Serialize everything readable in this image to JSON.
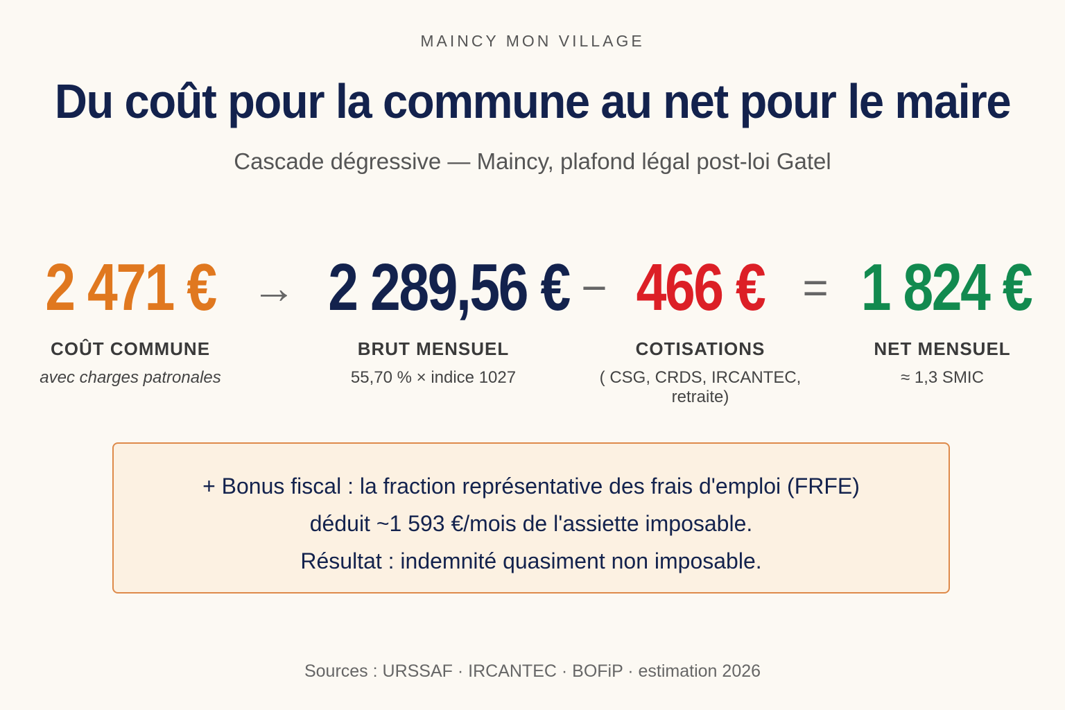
{
  "header": {
    "eyebrow": "MAINCY MON VILLAGE",
    "title": "Du coût pour la commune au net pour le maire",
    "subtitle": "Cascade dégressive — Maincy, plafond légal post-loi Gatel"
  },
  "cascade": {
    "cost": {
      "amount": "2 471 €",
      "label": "COÛT COMMUNE",
      "caption": "avec charges patronales",
      "color": "#e0781f"
    },
    "op1": "→",
    "gross": {
      "amount": "2 289,56 €",
      "label": "BRUT MENSUEL",
      "caption": "55,70 % × indice 1027",
      "color": "#13224d"
    },
    "op2": "−",
    "contributions": {
      "amount": "466 €",
      "label": "COTISATIONS",
      "caption": "( CSG, CRDS, IRCANTEC, retraite)",
      "color": "#dc1f26"
    },
    "op3": "=",
    "net": {
      "amount": "1 824 €",
      "label": "NET MENSUEL",
      "caption": "≈ 1,3 SMIC",
      "color": "#128a4f"
    }
  },
  "note": {
    "line1": "+ Bonus fiscal : la fraction représentative des frais d'emploi (FRFE)",
    "line2": "déduit ~1 593 €/mois de l'assiette imposable.",
    "line3": "Résultat : indemnité quasiment non imposable."
  },
  "footer": {
    "sources": "Sources : URSSAF · IRCANTEC · BOFiP · estimation 2026"
  }
}
